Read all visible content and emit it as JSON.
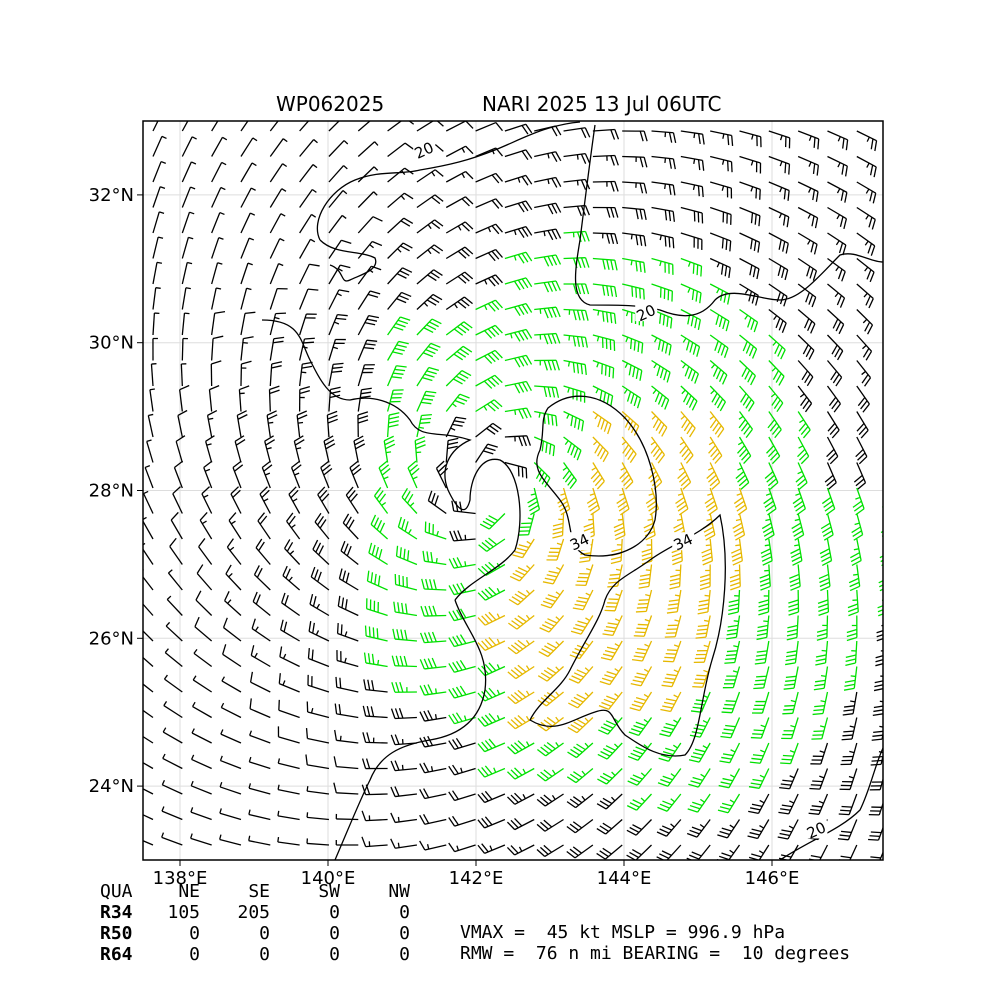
{
  "title": {
    "storm_id": "WP062025",
    "storm_info": "NARI 2025 13 Jul 06UTC"
  },
  "map": {
    "lon_range": [
      137.5,
      147.5
    ],
    "lat_range": [
      23.0,
      33.0
    ],
    "lon_ticks": [
      138,
      140,
      142,
      144,
      146
    ],
    "lat_ticks": [
      24,
      26,
      28,
      30,
      32
    ],
    "lon_tick_labels": [
      "138°E",
      "140°E",
      "142°E",
      "144°E",
      "146°E"
    ],
    "lat_tick_labels": [
      "24°N",
      "26°N",
      "28°N",
      "30°N",
      "32°N"
    ],
    "grid": true,
    "storm_center": {
      "lon": 142.2,
      "lat": 28.1
    },
    "contour_labels": [
      {
        "text": "20",
        "lon": 141.3,
        "lat": 32.6
      },
      {
        "text": "20",
        "lon": 144.3,
        "lat": 30.4
      },
      {
        "text": "20",
        "lon": 146.6,
        "lat": 23.4
      },
      {
        "text": "34",
        "lon": 143.4,
        "lat": 27.3
      },
      {
        "text": "34",
        "lon": 144.8,
        "lat": 27.3
      }
    ],
    "colors": {
      "below_34kt": "#000000",
      "gale_34_49kt": "#00e000",
      "storm_50_63kt": "#e6b800"
    }
  },
  "wind_radii": {
    "header": [
      "QUA",
      "NE",
      "SE",
      "SW",
      "NW"
    ],
    "rows": [
      {
        "label": "R34",
        "values": [
          "105",
          "205",
          "0",
          "0"
        ]
      },
      {
        "label": "R50",
        "values": [
          "0",
          "0",
          "0",
          "0"
        ]
      },
      {
        "label": "R64",
        "values": [
          "0",
          "0",
          "0",
          "0"
        ]
      }
    ]
  },
  "summary": {
    "line1": "VMAX =  45 kt MSLP = 996.9 hPa",
    "line2": "RMW =  76 n mi BEARING =  10 degrees"
  }
}
